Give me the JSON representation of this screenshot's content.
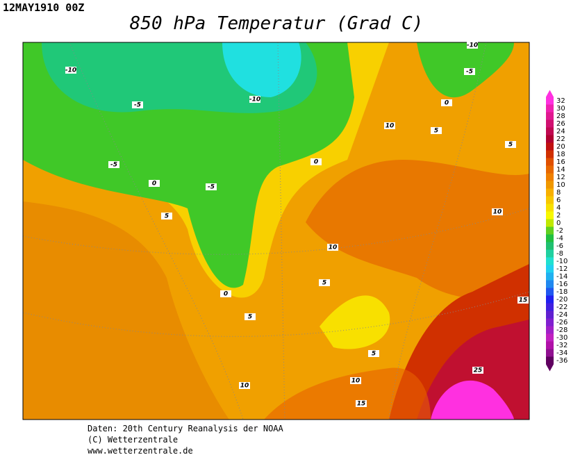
{
  "header": {
    "date": "12MAY1910 00Z",
    "title": "850 hPa Temperatur (Grad C)"
  },
  "footer": [
    "Daten: 20th Century Reanalysis der NOAA",
    "(C) Wetterzentrale",
    "www.wetterzentrale.de"
  ],
  "contour_labels": [
    -10,
    -5,
    -10,
    -10,
    -5,
    0,
    5,
    10,
    5,
    -5,
    0,
    -5,
    0,
    5,
    10,
    10,
    5,
    0,
    5,
    15,
    5,
    10,
    10,
    15,
    25
  ],
  "colorbar": {
    "ticks": [
      32,
      30,
      28,
      26,
      24,
      22,
      20,
      18,
      16,
      14,
      12,
      10,
      8,
      6,
      4,
      2,
      0,
      -2,
      -4,
      -6,
      -8,
      -10,
      -12,
      -14,
      -16,
      -18,
      -20,
      -22,
      -24,
      -26,
      -28,
      -30,
      -32,
      -34,
      -36
    ],
    "colors": [
      "#ff30e0",
      "#f020b0",
      "#e01890",
      "#d01070",
      "#c00850",
      "#b00030",
      "#c01010",
      "#d03000",
      "#e05000",
      "#e86800",
      "#f08000",
      "#f09800",
      "#f8b000",
      "#f8c800",
      "#f8e000",
      "#f8f800",
      "#c0e800",
      "#60d020",
      "#20c040",
      "#20c070",
      "#20d0a0",
      "#20e0d0",
      "#20d0f0",
      "#20b0f0",
      "#2088f0",
      "#2058f0",
      "#2020f0",
      "#4020e0",
      "#6020d0",
      "#8020d0",
      "#a020c8",
      "#c020c0",
      "#b010a8",
      "#901090",
      "#600060"
    ]
  }
}
